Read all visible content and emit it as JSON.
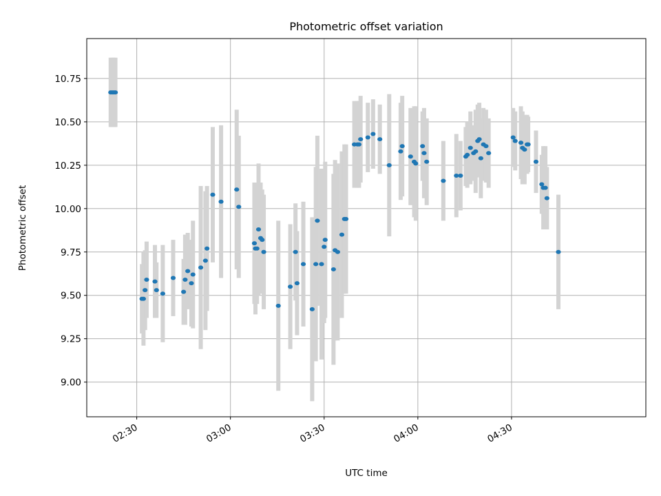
{
  "chart_data": {
    "type": "scatter",
    "title": "Photometric offset variation",
    "xlabel": "UTC time",
    "ylabel": "Photometric offset",
    "x_unit": "UTC time (HH:MM)",
    "xlim": [
      "02:14",
      "05:13"
    ],
    "ylim": [
      8.8,
      10.98
    ],
    "x_ticks": [
      "02:30",
      "03:00",
      "03:30",
      "04:00",
      "04:30"
    ],
    "y_ticks": [
      "9.00",
      "9.25",
      "9.50",
      "9.75",
      "10.00",
      "10.25",
      "10.50",
      "10.75"
    ],
    "grid": true,
    "marker_color": "#1f77b4",
    "errorbar_color": "#d3d3d3",
    "points": [
      {
        "x": "02:21:40",
        "y": 10.67,
        "err": 0.2
      },
      {
        "x": "02:22:10",
        "y": 10.67,
        "err": 0.2
      },
      {
        "x": "02:22:40",
        "y": 10.67,
        "err": 0.2
      },
      {
        "x": "02:23:10",
        "y": 10.67,
        "err": 0.2
      },
      {
        "x": "02:31:40",
        "y": 9.48,
        "err": 0.2
      },
      {
        "x": "02:32:10",
        "y": 9.48,
        "err": 0.27
      },
      {
        "x": "02:32:40",
        "y": 9.53,
        "err": 0.23
      },
      {
        "x": "02:33:10",
        "y": 9.59,
        "err": 0.22
      },
      {
        "x": "02:35:50",
        "y": 9.58,
        "err": 0.21
      },
      {
        "x": "02:36:20",
        "y": 9.53,
        "err": 0.16
      },
      {
        "x": "02:38:20",
        "y": 9.51,
        "err": 0.28
      },
      {
        "x": "02:41:40",
        "y": 9.6,
        "err": 0.22
      },
      {
        "x": "02:45:00",
        "y": 9.52,
        "err": 0.19
      },
      {
        "x": "02:45:30",
        "y": 9.59,
        "err": 0.26
      },
      {
        "x": "02:46:20",
        "y": 9.64,
        "err": 0.22
      },
      {
        "x": "02:47:30",
        "y": 9.57,
        "err": 0.25
      },
      {
        "x": "02:48:00",
        "y": 9.62,
        "err": 0.31
      },
      {
        "x": "02:50:30",
        "y": 9.66,
        "err": 0.47
      },
      {
        "x": "02:52:00",
        "y": 9.7,
        "err": 0.4
      },
      {
        "x": "02:52:30",
        "y": 9.77,
        "err": 0.36
      },
      {
        "x": "02:54:20",
        "y": 10.08,
        "err": 0.39
      },
      {
        "x": "02:57:00",
        "y": 10.04,
        "err": 0.44
      },
      {
        "x": "03:02:00",
        "y": 10.11,
        "err": 0.46
      },
      {
        "x": "03:02:40",
        "y": 10.01,
        "err": 0.41
      },
      {
        "x": "03:07:40",
        "y": 9.8,
        "err": 0.35
      },
      {
        "x": "03:08:00",
        "y": 9.77,
        "err": 0.38
      },
      {
        "x": "03:08:30",
        "y": 9.77,
        "err": 0.32
      },
      {
        "x": "03:09:00",
        "y": 9.88,
        "err": 0.38
      },
      {
        "x": "03:09:40",
        "y": 9.83,
        "err": 0.32
      },
      {
        "x": "03:10:10",
        "y": 9.82,
        "err": 0.29
      },
      {
        "x": "03:10:40",
        "y": 9.75,
        "err": 0.33
      },
      {
        "x": "03:15:20",
        "y": 9.44,
        "err": 0.49
      },
      {
        "x": "03:19:10",
        "y": 9.55,
        "err": 0.36
      },
      {
        "x": "03:20:50",
        "y": 9.75,
        "err": 0.28
      },
      {
        "x": "03:21:20",
        "y": 9.57,
        "err": 0.3
      },
      {
        "x": "03:23:20",
        "y": 9.68,
        "err": 0.36
      },
      {
        "x": "03:26:10",
        "y": 9.42,
        "err": 0.53
      },
      {
        "x": "03:27:20",
        "y": 9.68,
        "err": 0.56
      },
      {
        "x": "03:27:50",
        "y": 9.93,
        "err": 0.49
      },
      {
        "x": "03:29:10",
        "y": 9.68,
        "err": 0.55
      },
      {
        "x": "03:30:00",
        "y": 9.78,
        "err": 0.44
      },
      {
        "x": "03:30:20",
        "y": 9.82,
        "err": 0.45
      },
      {
        "x": "03:33:00",
        "y": 9.65,
        "err": 0.55
      },
      {
        "x": "03:33:30",
        "y": 9.76,
        "err": 0.52
      },
      {
        "x": "03:34:20",
        "y": 9.75,
        "err": 0.51
      },
      {
        "x": "03:35:40",
        "y": 9.85,
        "err": 0.48
      },
      {
        "x": "03:36:30",
        "y": 9.94,
        "err": 0.43
      },
      {
        "x": "03:37:00",
        "y": 9.94,
        "err": 0.43
      },
      {
        "x": "03:39:40",
        "y": 10.37,
        "err": 0.25
      },
      {
        "x": "03:40:40",
        "y": 10.37,
        "err": 0.25
      },
      {
        "x": "03:41:10",
        "y": 10.37,
        "err": 0.25
      },
      {
        "x": "03:41:40",
        "y": 10.4,
        "err": 0.25
      },
      {
        "x": "03:44:00",
        "y": 10.41,
        "err": 0.2
      },
      {
        "x": "03:45:40",
        "y": 10.43,
        "err": 0.2
      },
      {
        "x": "03:47:50",
        "y": 10.4,
        "err": 0.2
      },
      {
        "x": "03:50:50",
        "y": 10.25,
        "err": 0.41
      },
      {
        "x": "03:54:30",
        "y": 10.33,
        "err": 0.28
      },
      {
        "x": "03:55:00",
        "y": 10.36,
        "err": 0.29
      },
      {
        "x": "03:57:40",
        "y": 10.3,
        "err": 0.28
      },
      {
        "x": "03:58:50",
        "y": 10.27,
        "err": 0.32
      },
      {
        "x": "03:59:20",
        "y": 10.26,
        "err": 0.33
      },
      {
        "x": "04:01:30",
        "y": 10.36,
        "err": 0.2
      },
      {
        "x": "04:02:00",
        "y": 10.32,
        "err": 0.26
      },
      {
        "x": "04:02:50",
        "y": 10.27,
        "err": 0.25
      },
      {
        "x": "04:08:10",
        "y": 10.16,
        "err": 0.23
      },
      {
        "x": "04:12:20",
        "y": 10.19,
        "err": 0.24
      },
      {
        "x": "04:13:40",
        "y": 10.19,
        "err": 0.2
      },
      {
        "x": "04:15:20",
        "y": 10.3,
        "err": 0.17
      },
      {
        "x": "04:15:50",
        "y": 10.31,
        "err": 0.19
      },
      {
        "x": "04:16:50",
        "y": 10.35,
        "err": 0.21
      },
      {
        "x": "04:17:50",
        "y": 10.32,
        "err": 0.16
      },
      {
        "x": "04:18:30",
        "y": 10.33,
        "err": 0.24
      },
      {
        "x": "04:19:10",
        "y": 10.39,
        "err": 0.21
      },
      {
        "x": "04:19:40",
        "y": 10.4,
        "err": 0.21
      },
      {
        "x": "04:20:10",
        "y": 10.29,
        "err": 0.23
      },
      {
        "x": "04:21:00",
        "y": 10.37,
        "err": 0.21
      },
      {
        "x": "04:21:50",
        "y": 10.36,
        "err": 0.21
      },
      {
        "x": "04:22:40",
        "y": 10.32,
        "err": 0.2
      },
      {
        "x": "04:30:30",
        "y": 10.41,
        "err": 0.17
      },
      {
        "x": "04:31:10",
        "y": 10.39,
        "err": 0.17
      },
      {
        "x": "04:33:00",
        "y": 10.38,
        "err": 0.21
      },
      {
        "x": "04:33:30",
        "y": 10.35,
        "err": 0.21
      },
      {
        "x": "04:34:10",
        "y": 10.34,
        "err": 0.2
      },
      {
        "x": "04:35:00",
        "y": 10.37,
        "err": 0.17
      },
      {
        "x": "04:35:20",
        "y": 10.37,
        "err": 0.16
      },
      {
        "x": "04:37:50",
        "y": 10.27,
        "err": 0.18
      },
      {
        "x": "04:39:40",
        "y": 10.14,
        "err": 0.17
      },
      {
        "x": "04:40:10",
        "y": 10.12,
        "err": 0.24
      },
      {
        "x": "04:40:50",
        "y": 10.12,
        "err": 0.24
      },
      {
        "x": "04:41:20",
        "y": 10.06,
        "err": 0.18
      },
      {
        "x": "04:45:00",
        "y": 9.75,
        "err": 0.33
      }
    ]
  }
}
